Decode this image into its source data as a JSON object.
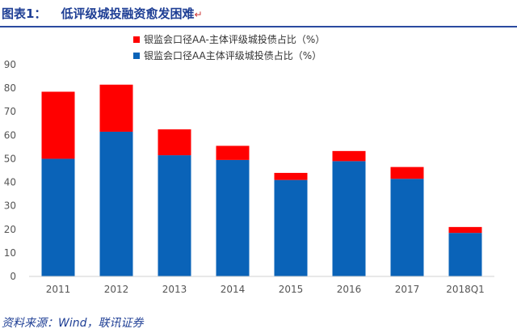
{
  "header": {
    "figure_number": "图表1：",
    "title": "低评级城投融资愈发困难",
    "title_mark": "↵"
  },
  "source_note": "资料来源：Wind，联讯证券",
  "colors": {
    "top_series": "#ff0000",
    "base_series": "#0a63b8",
    "heading": "#1f3f95"
  },
  "chart_data": {
    "type": "bar",
    "stacked": true,
    "categories": [
      "2011",
      "2012",
      "2013",
      "2014",
      "2015",
      "2016",
      "2017",
      "2018Q1"
    ],
    "series": [
      {
        "name": "银监会口径AA主体评级城投债占比（%）",
        "values": [
          50,
          61.5,
          51.5,
          49.5,
          41,
          49,
          41.5,
          18.5
        ]
      },
      {
        "name": "银监会口径AA-主体评级城投债占比（%）",
        "values": [
          28.5,
          20,
          11,
          6,
          3,
          4.3,
          5,
          2.5
        ]
      }
    ],
    "ylim": [
      0,
      90
    ],
    "yticks": [
      0,
      10,
      20,
      30,
      40,
      50,
      60,
      70,
      80,
      90
    ],
    "legend_position": "top-center",
    "grid": false
  }
}
